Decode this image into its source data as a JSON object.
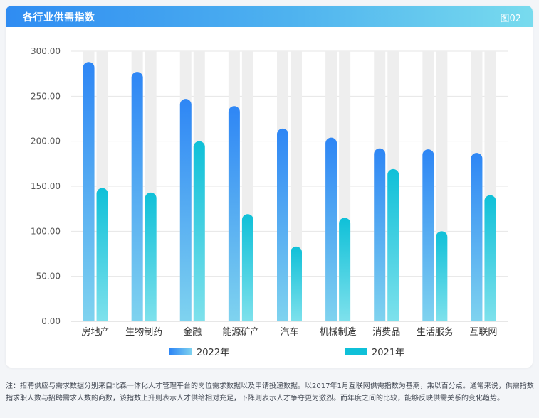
{
  "header": {
    "title": "各行业供需指数",
    "figure_no": "图02"
  },
  "colors": {
    "series_2022": [
      "#2e86f5",
      "#7fd3ef"
    ],
    "series_2021": [
      "#0fc0d8",
      "#7ee1ec"
    ],
    "bar_background": "#eeeeee",
    "gridline": "#e6e6e6"
  },
  "chart_data": {
    "type": "bar",
    "categories": [
      "房地产",
      "生物制药",
      "金融",
      "能源矿产",
      "汽车",
      "机械制造",
      "消费品",
      "生活服务",
      "互联网"
    ],
    "series": [
      {
        "name": "2022年",
        "values": [
          288,
          277,
          247,
          239,
          214,
          204,
          192,
          191,
          187
        ]
      },
      {
        "name": "2021年",
        "values": [
          148,
          143,
          200,
          119,
          83,
          115,
          169,
          100,
          140
        ]
      }
    ],
    "y_ticks": [
      "0.00",
      "50.00",
      "100.00",
      "150.00",
      "200.00",
      "250.00",
      "300.00"
    ],
    "ylim": [
      0,
      300
    ],
    "grid": true,
    "legend_position": "bottom"
  },
  "note": "注：招聘供应与需求数据分别来自北森一体化人才管理平台的岗位需求数据以及申请投递数据。以2017年1月互联网供需指数为基期，乘以百分点。通常来说，供需指数指求职人数与招聘需求人数的商数，该指数上升则表示人才供给相对充足，下降则表示人才争夺更为激烈。而年度之间的比较，能够反映供需关系的变化趋势。"
}
